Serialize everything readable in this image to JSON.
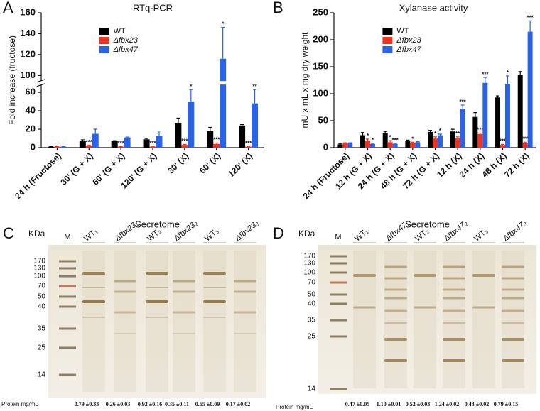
{
  "chart_data": [
    {
      "type": "bar",
      "panel": "A",
      "title": "RTq-PCR",
      "y_label": "Fold increase (fructose)",
      "categories": [
        "24 h (Fructose)",
        "30' (G + X)",
        "60' (G + X)",
        "120' (G + X)",
        "30' (X)",
        "60' (X)",
        "120' (X)"
      ],
      "series": [
        {
          "name": "WT",
          "color": "#000000",
          "values": [
            1,
            7,
            7,
            9,
            27,
            18,
            24
          ],
          "errors": [
            0.2,
            1.5,
            0.5,
            1,
            5,
            4,
            1
          ],
          "stars": [
            null,
            null,
            null,
            null,
            null,
            null,
            null
          ]
        },
        {
          "name": "Δfbx23",
          "color": "#ee3322",
          "values": [
            1,
            2,
            1,
            1,
            3,
            4,
            1
          ],
          "errors": [
            0.2,
            0.5,
            0.2,
            0.2,
            0.5,
            1,
            0.2
          ],
          "stars": [
            null,
            "***",
            "***",
            "***",
            "***",
            "***",
            "***"
          ]
        },
        {
          "name": "Δfbx47",
          "color": "#2a62e8",
          "values": [
            1,
            15,
            11,
            13,
            50,
            116,
            48
          ],
          "errors": [
            0.2,
            5,
            0.5,
            5,
            13,
            30,
            15
          ],
          "stars": [
            null,
            null,
            null,
            null,
            "*",
            "*",
            "**"
          ]
        }
      ],
      "ylim": [
        0,
        160
      ],
      "ylim_segments": [
        [
          0,
          68
        ],
        [
          95,
          160
        ]
      ],
      "yticks": [
        0,
        20,
        40,
        60,
        100,
        120,
        140,
        160
      ],
      "legend": "upper left"
    },
    {
      "type": "bar",
      "panel": "B",
      "title": "Xylanase activity",
      "y_label": "mU x mL x mg dry weight",
      "categories": [
        "24 h (Fructose)",
        "12 h (G + X)",
        "24 h (G + X)",
        "48 h (G + X)",
        "72 h (G + X)",
        "12 h (X)",
        "24 h (X)",
        "48 h (X)",
        "72 h (X)"
      ],
      "series": [
        {
          "name": "WT",
          "color": "#000000",
          "values": [
            6,
            23,
            27,
            12,
            29,
            30,
            57,
            93,
            135
          ],
          "errors": [
            1,
            5,
            3,
            2,
            3,
            4,
            8,
            3,
            6
          ],
          "stars": [
            null,
            null,
            null,
            null,
            null,
            null,
            null,
            null,
            null
          ]
        },
        {
          "name": "Δfbx23",
          "color": "#ee3322",
          "values": [
            8,
            13,
            10,
            9,
            17,
            17,
            25,
            5,
            8
          ],
          "errors": [
            1,
            3,
            3,
            1,
            3,
            3,
            2,
            1,
            2
          ],
          "stars": [
            null,
            "*",
            "*",
            "*",
            "*",
            "**",
            "***",
            "***",
            "***"
          ]
        },
        {
          "name": "Δfbx47",
          "color": "#2a62e8",
          "values": [
            8,
            7,
            7,
            10,
            23,
            71,
            120,
            118,
            215
          ],
          "errors": [
            1,
            1,
            1,
            1,
            2,
            8,
            10,
            15,
            20
          ],
          "stars": [
            null,
            "*",
            "***",
            null,
            "*",
            "***",
            "***",
            "*",
            "***"
          ]
        }
      ],
      "ylim": [
        0,
        250
      ],
      "yticks": [
        0,
        50,
        100,
        150,
        200,
        250
      ],
      "legend": "upper left"
    }
  ],
  "gels": [
    {
      "panel": "C",
      "title": "Secretome",
      "unit": "KDa",
      "markers": [
        170,
        130,
        100,
        70,
        50,
        40,
        35,
        25,
        14
      ],
      "lanes": [
        "M",
        "WT₁",
        "Δfbx23₁",
        "WT₂",
        "Δfbx23₂",
        "WT₃",
        "Δfbx23₃"
      ],
      "protein_label": "Protein mg/mL",
      "protein": [
        "0.79 ±0.33",
        "0.26 ±0.03",
        "0.92 ±0.16",
        "0.35 ±0.11",
        "0.65 ±0.09",
        "0.17 ±0.02"
      ]
    },
    {
      "panel": "D",
      "title": "Secretome",
      "unit": "KDa",
      "markers": [
        170,
        130,
        100,
        70,
        50,
        40,
        35,
        25,
        14
      ],
      "lanes": [
        "M",
        "WT₁",
        "Δfbx47₁",
        "WT₂",
        "Δfbx47₂",
        "WT₃",
        "Δfbx47₃"
      ],
      "protein_label": "Protein mg/mL",
      "protein": [
        "0.47 ±0.05",
        "1.10 ±0.01",
        "0.52 ±0.03",
        "1.24 ±0.02",
        "0.43 ±0.02",
        "0.79 ±0.15"
      ]
    }
  ]
}
